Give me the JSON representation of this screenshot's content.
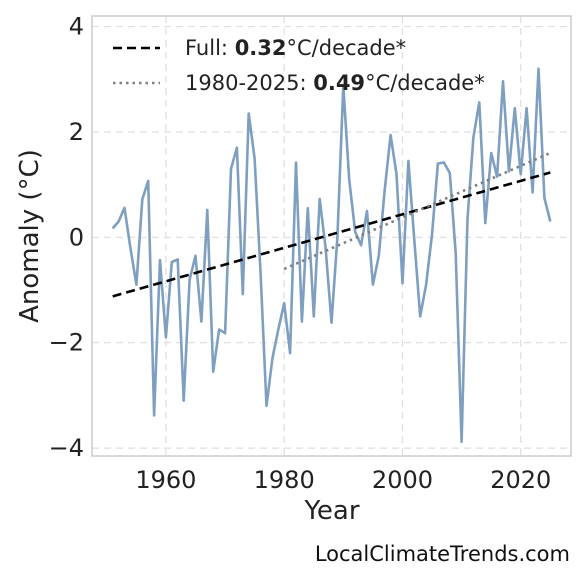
{
  "chart_data": {
    "type": "line",
    "xlabel": "Year",
    "ylabel": "Anomaly (°C)",
    "xlim": [
      1947.5,
      2028.5
    ],
    "ylim": [
      -4.15,
      4.2
    ],
    "xticks": [
      1960,
      1980,
      2000,
      2020
    ],
    "yticks": [
      -4,
      -2,
      0,
      2,
      4
    ],
    "ytick_labels": [
      "−4",
      "−2",
      "0",
      "2",
      "4"
    ],
    "grid": true,
    "legend_position": "upper-left",
    "colors": {
      "anomaly": "#7f9fc0",
      "full_trend": "#000000",
      "recent_trend": "#7f7f7f"
    },
    "series": [
      {
        "x": [
          1951,
          1952,
          1953,
          1954,
          1955,
          1956,
          1957,
          1958,
          1959,
          1960,
          1961,
          1962,
          1963,
          1964,
          1965,
          1966,
          1967,
          1968,
          1969,
          1970,
          1971,
          1972,
          1973,
          1974,
          1975,
          1976,
          1977,
          1978,
          1979,
          1980,
          1981,
          1982,
          1983,
          1984,
          1985,
          1986,
          1987,
          1988,
          1989,
          1990,
          1991,
          1992,
          1993,
          1994,
          1995,
          1996,
          1997,
          1998,
          1999,
          2000,
          2001,
          2002,
          2003,
          2004,
          2005,
          2006,
          2007,
          2008,
          2009,
          2010,
          2011,
          2012,
          2013,
          2014,
          2015,
          2016,
          2017,
          2018,
          2019,
          2020,
          2021,
          2022,
          2023,
          2024,
          2025
        ],
        "values": [
          0.17,
          0.3,
          0.56,
          -0.2,
          -0.9,
          0.72,
          1.07,
          -3.38,
          -0.43,
          -1.9,
          -0.47,
          -0.42,
          -3.1,
          -0.8,
          -0.35,
          -1.6,
          0.52,
          -2.55,
          -1.75,
          -1.82,
          1.3,
          1.7,
          -1.08,
          2.35,
          1.5,
          -0.65,
          -3.2,
          -2.3,
          -1.75,
          -1.25,
          -2.2,
          1.42,
          -1.6,
          0.55,
          -1.5,
          0.73,
          -0.2,
          -1.62,
          0.0,
          2.88,
          1.1,
          0.1,
          -0.15,
          0.5,
          -0.9,
          -0.35,
          0.9,
          1.94,
          1.2,
          -0.87,
          1.45,
          -0.05,
          -1.5,
          -0.9,
          0.05,
          1.4,
          1.42,
          1.22,
          -0.3,
          -3.88,
          0.35,
          1.9,
          2.56,
          0.27,
          1.6,
          1.15,
          2.96,
          1.25,
          2.45,
          1.2,
          2.45,
          0.85,
          3.2,
          0.75,
          0.3
        ]
      }
    ],
    "trend_lines": [
      {
        "name": "Full",
        "x": [
          1951,
          2025
        ],
        "values": [
          -1.12,
          1.23
        ],
        "rate": "0.32",
        "unit": "°C/decade*"
      },
      {
        "name": "1980-2025",
        "x": [
          1980,
          2025
        ],
        "values": [
          -0.6,
          1.6
        ],
        "rate": "0.49",
        "unit": "°C/decade*"
      }
    ]
  },
  "credit": "LocalClimateTrends.com"
}
